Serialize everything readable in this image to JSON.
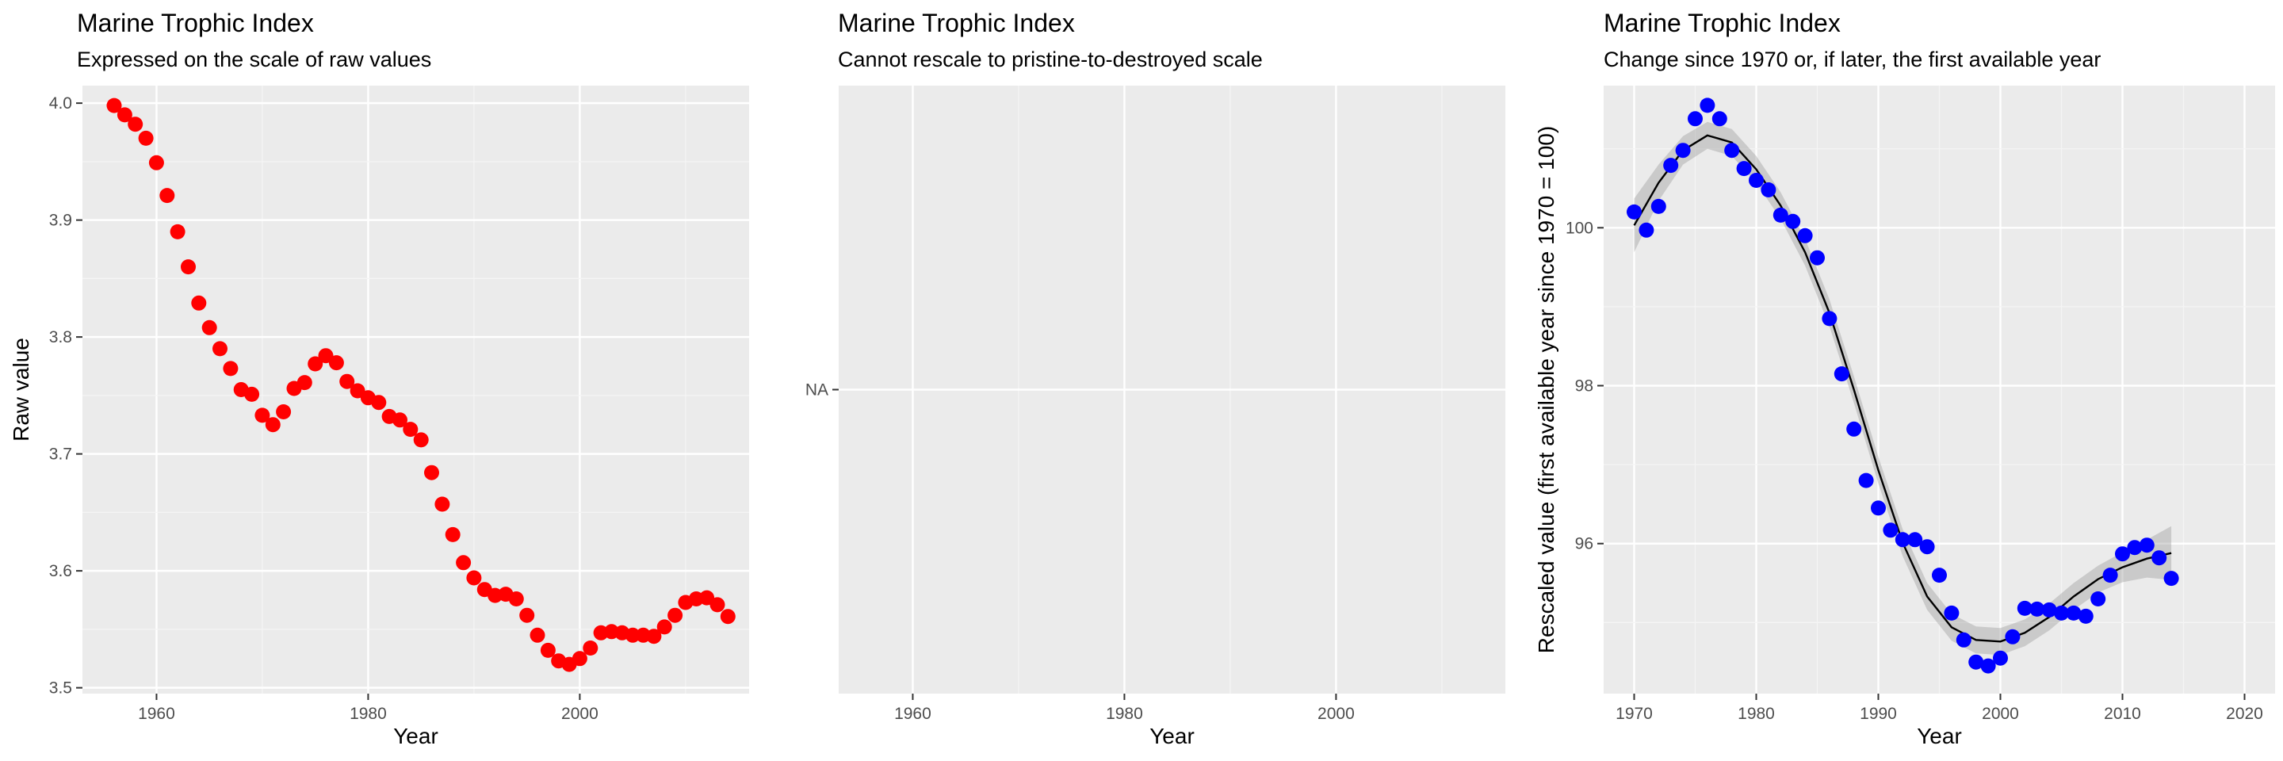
{
  "colors": {
    "panel_bg": "#ebebeb",
    "grid_major": "#ffffff",
    "grid_minor": "#f5f5f5",
    "tick": "#333333"
  },
  "chart_data": [
    {
      "type": "scatter",
      "title": "Marine Trophic Index",
      "subtitle": "Expressed on the scale of raw values",
      "xlabel": "Year",
      "ylabel": "Raw value",
      "xlim": [
        1953,
        2016
      ],
      "ylim": [
        3.495,
        4.015
      ],
      "xticks": [
        1960,
        1980,
        2000
      ],
      "yticks": [
        3.5,
        3.6,
        3.7,
        3.8,
        3.9,
        4.0
      ],
      "ytick_labels": [
        "3.5",
        "3.6",
        "3.7",
        "3.8",
        "3.9",
        "4.0"
      ],
      "point_color": "#ff0000",
      "grid": true,
      "x": [
        1956,
        1957,
        1958,
        1959,
        1960,
        1961,
        1962,
        1963,
        1964,
        1965,
        1966,
        1967,
        1968,
        1969,
        1970,
        1971,
        1972,
        1973,
        1974,
        1975,
        1976,
        1977,
        1978,
        1979,
        1980,
        1981,
        1982,
        1983,
        1984,
        1985,
        1986,
        1987,
        1988,
        1989,
        1990,
        1991,
        1992,
        1993,
        1994,
        1995,
        1996,
        1997,
        1998,
        1999,
        2000,
        2001,
        2002,
        2003,
        2004,
        2005,
        2006,
        2007,
        2008,
        2009,
        2010,
        2011,
        2012,
        2013,
        2014
      ],
      "y": [
        3.998,
        3.99,
        3.982,
        3.97,
        3.949,
        3.921,
        3.89,
        3.86,
        3.829,
        3.808,
        3.79,
        3.773,
        3.755,
        3.751,
        3.733,
        3.725,
        3.736,
        3.756,
        3.761,
        3.777,
        3.784,
        3.778,
        3.762,
        3.754,
        3.748,
        3.744,
        3.732,
        3.729,
        3.721,
        3.712,
        3.684,
        3.657,
        3.631,
        3.607,
        3.594,
        3.584,
        3.579,
        3.58,
        3.576,
        3.562,
        3.545,
        3.532,
        3.523,
        3.52,
        3.525,
        3.534,
        3.547,
        3.548,
        3.547,
        3.545,
        3.545,
        3.544,
        3.552,
        3.562,
        3.573,
        3.576,
        3.577,
        3.571,
        3.561
      ]
    },
    {
      "type": "scatter",
      "title": "Marine Trophic Index",
      "subtitle": "Cannot rescale to pristine-to-destroyed scale",
      "xlabel": "Year",
      "ylabel": "",
      "xlim": [
        1953,
        2016
      ],
      "xticks": [
        1960,
        1980,
        2000
      ],
      "ytick_labels": [
        "NA"
      ],
      "grid": true,
      "x": [],
      "y": []
    },
    {
      "type": "scatter",
      "title": "Marine Trophic Index",
      "subtitle": "Change since 1970 or, if later, the first available year",
      "xlabel": "Year",
      "ylabel": "Rescaled value (first available year since 1970 = 100)",
      "xlim": [
        1967.5,
        2022.5
      ],
      "ylim": [
        94.1,
        101.8
      ],
      "xticks": [
        1970,
        1980,
        1990,
        2000,
        2010,
        2020
      ],
      "yticks": [
        96,
        98,
        100
      ],
      "ytick_labels": [
        "96",
        "98",
        "100"
      ],
      "point_color": "#0000ff",
      "smooth_line": true,
      "confidence_band": true,
      "grid": true,
      "x": [
        1970,
        1971,
        1972,
        1973,
        1974,
        1975,
        1976,
        1977,
        1978,
        1979,
        1980,
        1981,
        1982,
        1983,
        1984,
        1985,
        1986,
        1987,
        1988,
        1989,
        1990,
        1991,
        1992,
        1993,
        1994,
        1995,
        1996,
        1997,
        1998,
        1999,
        2000,
        2001,
        2002,
        2003,
        2004,
        2005,
        2006,
        2007,
        2008,
        2009,
        2010,
        2011,
        2012,
        2013,
        2014
      ],
      "y": [
        100.2,
        99.97,
        100.27,
        100.79,
        100.98,
        101.38,
        101.55,
        101.38,
        100.98,
        100.75,
        100.6,
        100.48,
        100.16,
        100.08,
        99.9,
        99.62,
        98.85,
        98.15,
        97.45,
        96.8,
        96.45,
        96.17,
        96.05,
        96.05,
        95.96,
        95.6,
        95.12,
        94.78,
        94.5,
        94.45,
        94.55,
        94.82,
        95.18,
        95.17,
        95.16,
        95.12,
        95.12,
        95.08,
        95.3,
        95.6,
        95.87,
        95.95,
        95.98,
        95.82,
        95.56
      ],
      "smooth": [
        {
          "x": 1970,
          "y": 100.03,
          "se": 0.34
        },
        {
          "x": 1972,
          "y": 100.57,
          "se": 0.23
        },
        {
          "x": 1974,
          "y": 100.98,
          "se": 0.18
        },
        {
          "x": 1976,
          "y": 101.17,
          "se": 0.17
        },
        {
          "x": 1978,
          "y": 101.08,
          "se": 0.17
        },
        {
          "x": 1980,
          "y": 100.74,
          "se": 0.17
        },
        {
          "x": 1982,
          "y": 100.28,
          "se": 0.17
        },
        {
          "x": 1984,
          "y": 99.69,
          "se": 0.17
        },
        {
          "x": 1986,
          "y": 98.92,
          "se": 0.17
        },
        {
          "x": 1988,
          "y": 97.95,
          "se": 0.17
        },
        {
          "x": 1990,
          "y": 96.93,
          "se": 0.17
        },
        {
          "x": 1992,
          "y": 96.01,
          "se": 0.17
        },
        {
          "x": 1994,
          "y": 95.33,
          "se": 0.17
        },
        {
          "x": 1996,
          "y": 94.94,
          "se": 0.17
        },
        {
          "x": 1998,
          "y": 94.78,
          "se": 0.17
        },
        {
          "x": 2000,
          "y": 94.76,
          "se": 0.17
        },
        {
          "x": 2002,
          "y": 94.87,
          "se": 0.17
        },
        {
          "x": 2004,
          "y": 95.07,
          "se": 0.17
        },
        {
          "x": 2006,
          "y": 95.33,
          "se": 0.17
        },
        {
          "x": 2008,
          "y": 95.55,
          "se": 0.17
        },
        {
          "x": 2010,
          "y": 95.7,
          "se": 0.19
        },
        {
          "x": 2012,
          "y": 95.81,
          "se": 0.24
        },
        {
          "x": 2014,
          "y": 95.88,
          "se": 0.34
        }
      ]
    }
  ]
}
